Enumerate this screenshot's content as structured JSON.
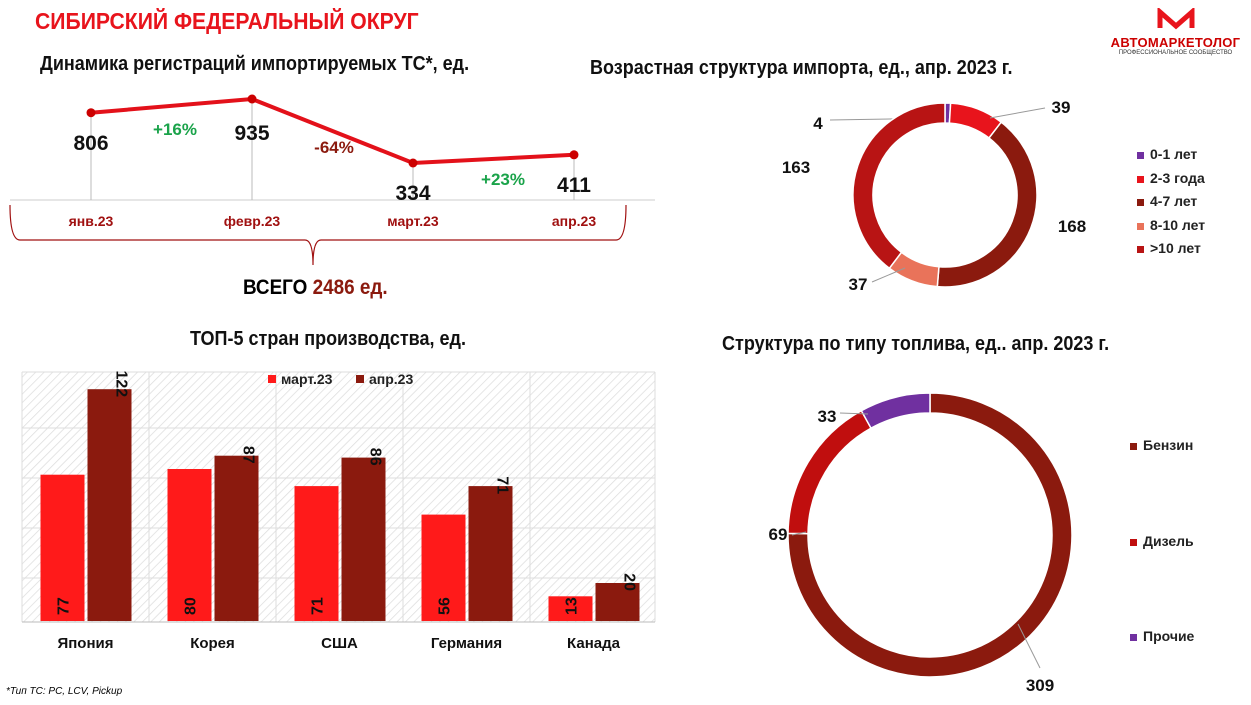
{
  "title": "СИБИРСКИЙ ФЕДЕРАЛЬНЫЙ ОКРУГ",
  "logo": {
    "name": "АВТОМАРКЕТОЛОГ",
    "tagline": "ПРОФЕССИОНАЛЬНОЕ СООБЩЕСТВО"
  },
  "footnote": "*Тип ТС: PC, LCV, Pickup",
  "total": {
    "label": "ВСЕГО",
    "value": "2486 ед."
  },
  "chart_data": [
    {
      "type": "line",
      "title": "Динамика регистраций импортируемых ТС*, ед.",
      "categories": [
        "янв.23",
        "февр.23",
        "март.23",
        "апр.23"
      ],
      "values": [
        806,
        935,
        334,
        411
      ],
      "changes": [
        "+16%",
        "-64%",
        "+23%"
      ],
      "color": "#e3111a"
    },
    {
      "type": "pie",
      "title": "Возрастная структура импорта, ед., апр. 2023 г.",
      "labels": [
        "0-1 лет",
        "2-3 года",
        "4-7 лет",
        "8-10 лет",
        ">10 лет"
      ],
      "values": [
        4,
        39,
        168,
        37,
        163
      ],
      "colors": [
        "#7030a0",
        "#e8141c",
        "#8b1a0e",
        "#e9735a",
        "#b81414"
      ],
      "legend": "right"
    },
    {
      "type": "bar",
      "title": "ТОП-5 стран производства, ед.",
      "categories": [
        "Япония",
        "Корея",
        "США",
        "Германия",
        "Канада"
      ],
      "series": [
        {
          "name": "март.23",
          "values": [
            77,
            80,
            71,
            56,
            13
          ],
          "color": "#ff1a1a"
        },
        {
          "name": "апр.23",
          "values": [
            122,
            87,
            86,
            71,
            20
          ],
          "color": "#8b1a0e"
        }
      ],
      "ylim": [
        0,
        130
      ],
      "legend": "top"
    },
    {
      "type": "pie",
      "title": "Структура по типу топлива, ед.. апр. 2023 г.",
      "labels": [
        "Бензин",
        "Дизель",
        "Прочие"
      ],
      "values": [
        309,
        69,
        33
      ],
      "colors": [
        "#8b1a0e",
        "#c00e0e",
        "#7030a0"
      ],
      "legend": "right"
    }
  ]
}
